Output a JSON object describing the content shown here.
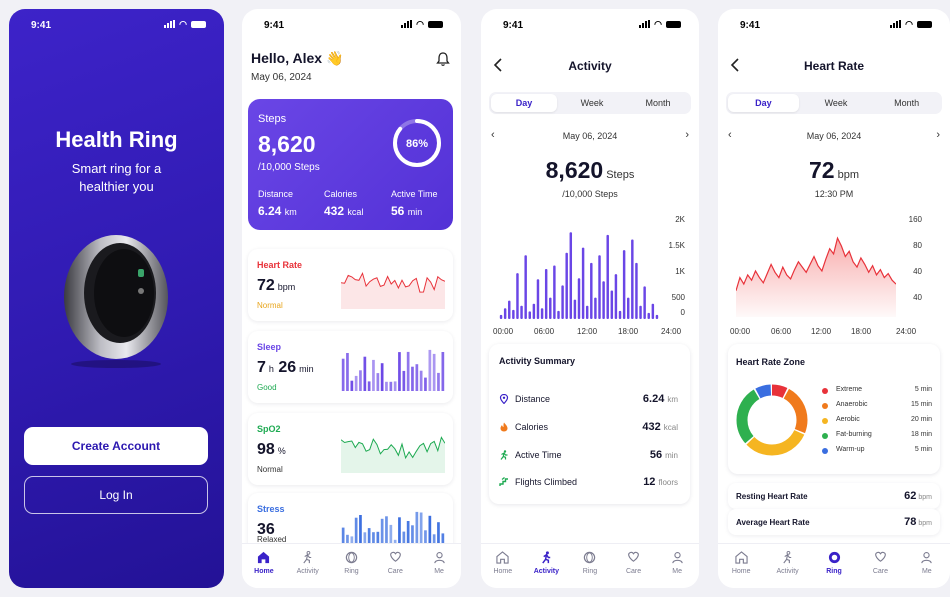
{
  "status": {
    "time": "9:41"
  },
  "onboarding": {
    "title": "Health Ring",
    "subtitle": "Smart ring for a healthier you",
    "create_account": "Create Account",
    "login": "Log In"
  },
  "home": {
    "greeting": "Hello, Alex 👋",
    "date": "May 06, 2024",
    "steps_card": {
      "label": "Steps",
      "value": "8,620",
      "goal": "/10,000 Steps",
      "progress_label": "86%",
      "progress": 0.86,
      "stats": [
        {
          "label": "Distance",
          "value": "6.24",
          "unit": "km"
        },
        {
          "label": "Calories",
          "value": "432",
          "unit": "kcal"
        },
        {
          "label": "Active Time",
          "value": "56",
          "unit": "min"
        }
      ]
    },
    "metrics": [
      {
        "title": "Heart Rate",
        "value": "72",
        "unit": "bpm",
        "status": "Normal",
        "color": "#e8323a",
        "status_color": "#e8a51c"
      },
      {
        "title": "Sleep",
        "value_h": "7",
        "unit_h": "h",
        "value_m": "26",
        "unit_m": "min",
        "status": "Good",
        "color": "#6a46e6",
        "status_color": "#1eaa52"
      },
      {
        "title": "SpO2",
        "value": "98",
        "unit": "%",
        "status": "Normal",
        "color": "#1eaa52",
        "status_color": "#333333"
      },
      {
        "title": "Stress",
        "value": "36",
        "unit": "",
        "status": "Relaxed",
        "color": "#3a6ee0",
        "status_color": "#333333"
      }
    ]
  },
  "tabs": [
    "Home",
    "Activity",
    "Ring",
    "Care",
    "Me"
  ],
  "segments": [
    "Day",
    "Week",
    "Month"
  ],
  "activity": {
    "title": "Activity",
    "date": "May 06, 2024",
    "value": "8,620",
    "unit": "Steps",
    "goal": "/10,000 Steps",
    "chart_data": {
      "type": "bar",
      "x_ticks": [
        "00:00",
        "06:00",
        "12:00",
        "18:00",
        "24:00"
      ],
      "y_ticks": [
        "2K",
        "1.5K",
        "1K",
        "500",
        "0"
      ],
      "ylim": [
        0,
        2000
      ],
      "values": [
        80,
        210,
        360,
        180,
        900,
        260,
        1250,
        150,
        300,
        780,
        210,
        980,
        420,
        1050,
        160,
        660,
        1300,
        1700,
        380,
        800,
        1400,
        260,
        1100,
        420,
        1250,
        740,
        1650,
        560,
        880,
        160,
        1350,
        420,
        1560,
        1100,
        260,
        640,
        120,
        300,
        80
      ]
    },
    "summary": {
      "title": "Activity Summary",
      "rows": [
        {
          "icon": "location-pin-icon",
          "label": "Distance",
          "value": "6.24",
          "unit": "km"
        },
        {
          "icon": "flame-icon",
          "label": "Calories",
          "value": "432",
          "unit": "kcal"
        },
        {
          "icon": "running-icon",
          "label": "Active Time",
          "value": "56",
          "unit": "min"
        },
        {
          "icon": "stairs-icon",
          "label": "Flights Climbed",
          "value": "12",
          "unit": "floors"
        }
      ]
    }
  },
  "heart": {
    "title": "Heart Rate",
    "date": "May 06, 2024",
    "value": "72",
    "unit": "bpm",
    "time": "12:30 PM",
    "chart_data": {
      "type": "area",
      "x_ticks": [
        "00:00",
        "06:00",
        "12:00",
        "18:00",
        "24:00"
      ],
      "y_ticks": [
        "160",
        "80",
        "40",
        "40"
      ],
      "values": [
        60,
        70,
        65,
        72,
        68,
        75,
        70,
        66,
        73,
        80,
        74,
        70,
        78,
        72,
        69,
        76,
        82,
        78,
        74,
        80,
        86,
        79,
        75,
        84,
        92,
        88,
        100,
        94,
        86,
        90,
        82,
        78,
        85,
        80,
        74,
        79,
        72,
        76,
        70,
        73,
        68,
        65
      ]
    },
    "zone": {
      "title": "Heart Rate Zone",
      "items": [
        {
          "label": "Extreme",
          "value": "5 min",
          "color": "#e8323a",
          "minutes": 5
        },
        {
          "label": "Anaerobic",
          "value": "15 min",
          "color": "#f07a1c",
          "minutes": 15
        },
        {
          "label": "Aerobic",
          "value": "20 min",
          "color": "#f5b521",
          "minutes": 20
        },
        {
          "label": "Fat-burning",
          "value": "18 min",
          "color": "#2eb04f",
          "minutes": 18
        },
        {
          "label": "Warm-up",
          "value": "5 min",
          "color": "#3a6ee0",
          "minutes": 5
        }
      ]
    },
    "resting": {
      "label": "Resting Heart Rate",
      "value": "62",
      "unit": "bpm"
    },
    "average": {
      "label": "Average Heart Rate",
      "value": "78",
      "unit": "bpm"
    }
  }
}
